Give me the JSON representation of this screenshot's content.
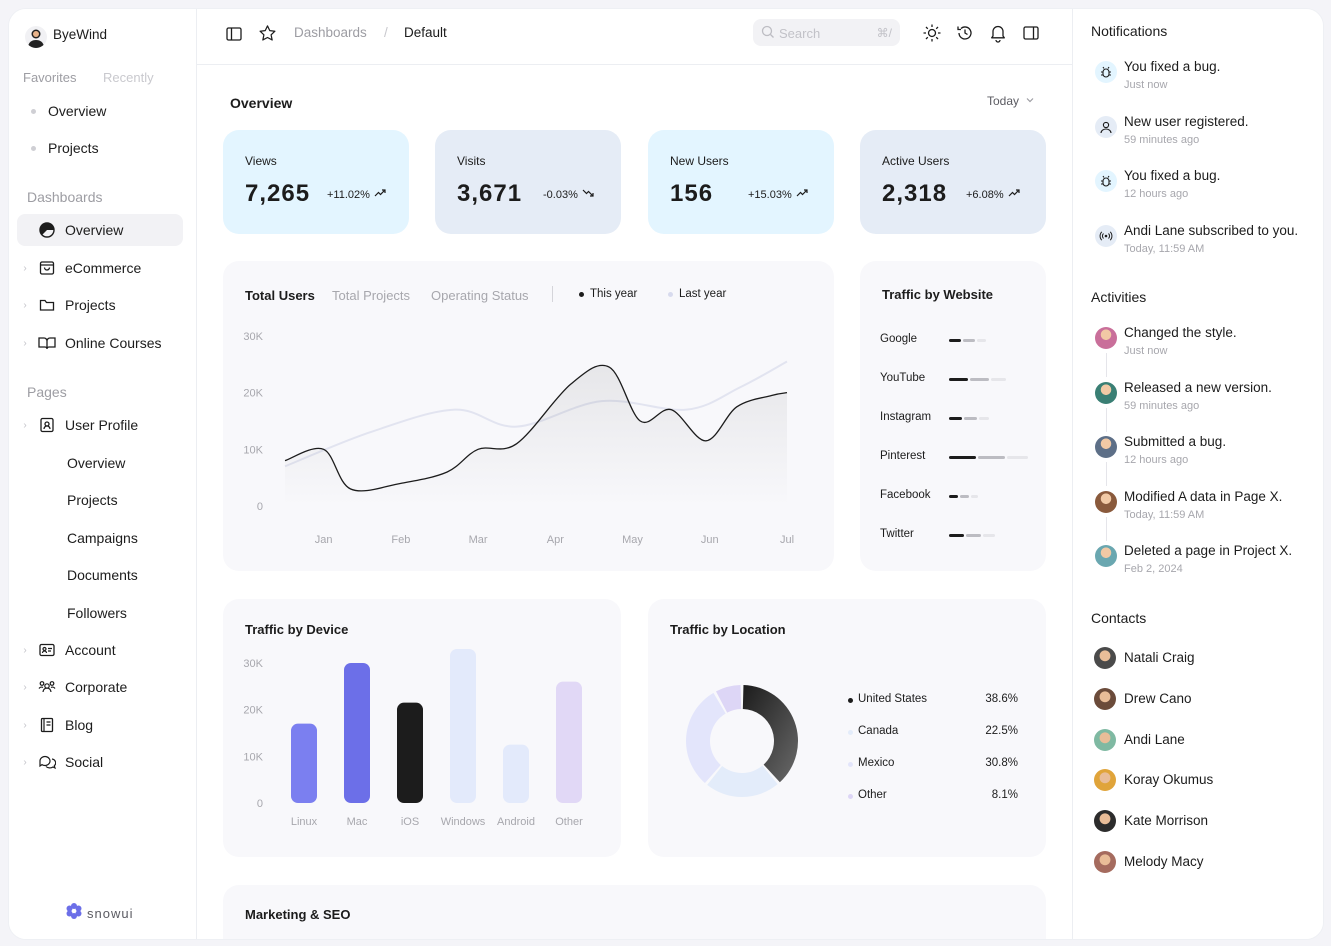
{
  "brand": {
    "name": "ByeWind",
    "footer_logo": "snowui"
  },
  "sidebar": {
    "tabs": [
      "Favorites",
      "Recently"
    ],
    "favorites": [
      "Overview",
      "Projects"
    ],
    "dashboards_label": "Dashboards",
    "dashboards": [
      {
        "label": "Overview",
        "icon": "pie-chart-icon",
        "active": true
      },
      {
        "label": "eCommerce",
        "icon": "shopping-bag-icon"
      },
      {
        "label": "Projects",
        "icon": "folder-icon"
      },
      {
        "label": "Online Courses",
        "icon": "book-open-icon"
      }
    ],
    "pages_label": "Pages",
    "pages": [
      {
        "label": "User Profile",
        "icon": "id-badge-icon"
      }
    ],
    "user_profile_sub": [
      "Overview",
      "Projects",
      "Campaigns",
      "Documents",
      "Followers"
    ],
    "pages_more": [
      {
        "label": "Account",
        "icon": "id-card-icon"
      },
      {
        "label": "Corporate",
        "icon": "users-three-icon"
      },
      {
        "label": "Blog",
        "icon": "notebook-icon"
      },
      {
        "label": "Social",
        "icon": "chats-icon"
      }
    ]
  },
  "topbar": {
    "breadcrumb": [
      "Dashboards",
      "Default"
    ],
    "search_placeholder": "Search",
    "search_shortcut": "⌘/"
  },
  "overview": {
    "title": "Overview",
    "period": "Today",
    "stats": [
      {
        "label": "Views",
        "value": "7,265",
        "change": "+11.02%",
        "trend": "up",
        "bg": "#e3f5ff"
      },
      {
        "label": "Visits",
        "value": "3,671",
        "change": "-0.03%",
        "trend": "down",
        "bg": "#e5ecf6"
      },
      {
        "label": "New Users",
        "value": "156",
        "change": "+15.03%",
        "trend": "up",
        "bg": "#e3f5ff"
      },
      {
        "label": "Active Users",
        "value": "2,318",
        "change": "+6.08%",
        "trend": "up",
        "bg": "#e5ecf6"
      }
    ]
  },
  "total_users": {
    "tabs": [
      "Total Users",
      "Total Projects",
      "Operating Status"
    ],
    "legend": [
      "This year",
      "Last year"
    ],
    "chart_data": {
      "type": "line",
      "title": "Total Users",
      "categories": [
        "Jan",
        "Feb",
        "Mar",
        "Apr",
        "May",
        "Jun",
        "Jul"
      ],
      "yticks": [
        "30K",
        "20K",
        "10K",
        "0"
      ],
      "ylim": [
        0,
        30000
      ],
      "series": [
        {
          "name": "This year",
          "x": [
            0,
            0.5,
            0.85,
            1.5,
            2.1,
            2.5,
            3.0,
            3.7,
            4.2,
            4.6,
            5.0,
            5.45,
            5.85,
            6.3,
            6.5
          ],
          "values": [
            8000,
            10000,
            3000,
            4000,
            6000,
            10000,
            11000,
            21500,
            24500,
            15000,
            17000,
            11500,
            17500,
            19500,
            20000
          ]
        },
        {
          "name": "Last year",
          "x": [
            0,
            1.1,
            2.2,
            3.0,
            4.1,
            5.2,
            5.9,
            6.5
          ],
          "values": [
            7000,
            13000,
            17000,
            14000,
            18500,
            17000,
            21000,
            25500
          ]
        }
      ]
    }
  },
  "traffic_website": {
    "title": "Traffic by Website",
    "items": [
      {
        "label": "Google",
        "value": 3
      },
      {
        "label": "YouTube",
        "value": 5
      },
      {
        "label": "Instagram",
        "value": 3.5
      },
      {
        "label": "Pinterest",
        "value": 7
      },
      {
        "label": "Facebook",
        "value": 2.5
      },
      {
        "label": "Twitter",
        "value": 4
      }
    ]
  },
  "traffic_device": {
    "title": "Traffic by Device",
    "chart_data": {
      "type": "bar",
      "title": "Traffic by Device",
      "categories": [
        "Linux",
        "Mac",
        "iOS",
        "Windows",
        "Android",
        "Other"
      ],
      "values": [
        17000,
        30000,
        21500,
        34500,
        12500,
        26000
      ],
      "yticks": [
        "30K",
        "20K",
        "10K",
        "0"
      ],
      "ylim": [
        0,
        30000
      ],
      "colors": [
        "#7b7ff0",
        "#6c6fe8",
        "#1c1c1c",
        "#e3eafb",
        "#e3eafb",
        "#e1d8f6"
      ]
    }
  },
  "traffic_location": {
    "title": "Traffic by Location",
    "chart_data": {
      "type": "pie",
      "categories": [
        "United States",
        "Canada",
        "Mexico",
        "Other"
      ],
      "values": [
        38.6,
        22.5,
        30.8,
        8.1
      ],
      "labels": [
        "38.6%",
        "22.5%",
        "30.8%",
        "8.1%"
      ],
      "colors": [
        "#2b2b2b",
        "#e3ecfa",
        "#e3e5fb",
        "#ddd6f6"
      ]
    }
  },
  "marketing": {
    "title": "Marketing & SEO"
  },
  "notifications": {
    "title": "Notifications",
    "items": [
      {
        "text": "You fixed a bug.",
        "time": "Just now",
        "icon": "bug-icon"
      },
      {
        "text": "New user registered.",
        "time": "59 minutes ago",
        "icon": "user-icon"
      },
      {
        "text": "You fixed a bug.",
        "time": "12 hours ago",
        "icon": "bug-icon"
      },
      {
        "text": "Andi Lane subscribed to you.",
        "time": "Today, 11:59 AM",
        "icon": "broadcast-icon"
      }
    ]
  },
  "activities": {
    "title": "Activities",
    "items": [
      {
        "text": "Changed the style.",
        "time": "Just now",
        "color": "#c96f9a"
      },
      {
        "text": "Released a new version.",
        "time": "59 minutes ago",
        "color": "#3a7f74"
      },
      {
        "text": "Submitted a bug.",
        "time": "12 hours ago",
        "color": "#5d6f87"
      },
      {
        "text": "Modified A data in Page X.",
        "time": "Today, 11:59 AM",
        "color": "#8a5a3c"
      },
      {
        "text": "Deleted a page in Project X.",
        "time": "Feb 2, 2024",
        "color": "#6aa7b0"
      }
    ]
  },
  "contacts": {
    "title": "Contacts",
    "items": [
      {
        "name": "Natali Craig",
        "color": "#4a4a4a"
      },
      {
        "name": "Drew Cano",
        "color": "#6b4b3a"
      },
      {
        "name": "Andi Lane",
        "color": "#7fb9a2"
      },
      {
        "name": "Koray Okumus",
        "color": "#e0a43a"
      },
      {
        "name": "Kate Morrison",
        "color": "#2c2c2c"
      },
      {
        "name": "Melody Macy",
        "color": "#a56b5e"
      }
    ]
  }
}
